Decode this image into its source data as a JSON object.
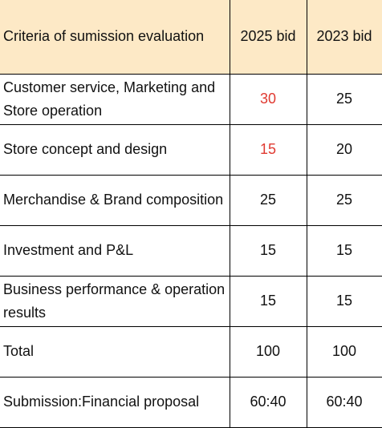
{
  "header": {
    "criteria": "Criteria of sumission evaluation",
    "col2025": "2025 bid",
    "col2023": "2023 bid"
  },
  "rows": [
    {
      "label": "Customer service, Marketing and Store operation",
      "v2025": "30",
      "v2023": "25",
      "highlight2025": true
    },
    {
      "label": "Store concept and design",
      "v2025": "15",
      "v2023": "20",
      "highlight2025": true
    },
    {
      "label": "Merchandise & Brand composition",
      "v2025": "25",
      "v2023": "25",
      "highlight2025": false
    },
    {
      "label": "Investment and P&L",
      "v2025": "15",
      "v2023": "15",
      "highlight2025": false
    },
    {
      "label": "Business performance & operation results",
      "v2025": "15",
      "v2023": "15",
      "highlight2025": false
    },
    {
      "label": "Total",
      "v2025": "100",
      "v2023": "100",
      "highlight2025": false
    },
    {
      "label": "Submission:Financial proposal",
      "v2025": "60:40",
      "v2023": "60:40",
      "highlight2025": false
    }
  ],
  "colors": {
    "header_bg": "#fde9c6",
    "highlight": "#e03a31",
    "border": "#000000"
  }
}
